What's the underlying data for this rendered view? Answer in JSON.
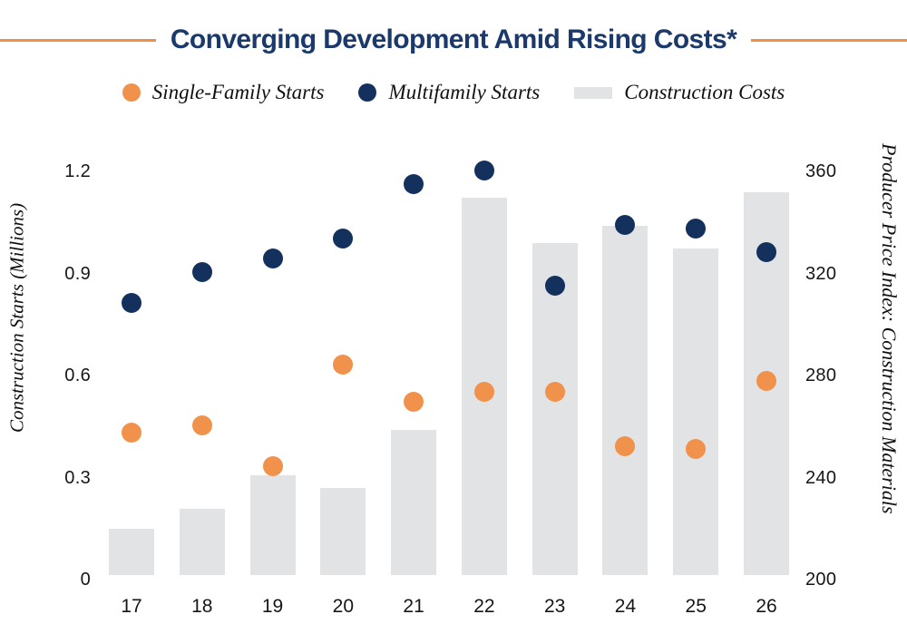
{
  "header": {
    "title": "Converging Development Amid Rising Costs*"
  },
  "legend": {
    "items": [
      {
        "label": "Single-Family Starts",
        "marker": "orange-dot",
        "color": "#F1924C"
      },
      {
        "label": "Multifamily Starts",
        "marker": "navy-dot",
        "color": "#14315E"
      },
      {
        "label": "Construction Costs",
        "marker": "gray-bar",
        "color": "#E1E3E4"
      }
    ]
  },
  "colors": {
    "title_navy": "#1B3A6B",
    "rule_orange": "#EF8F4A",
    "single_family_orange": "#F1924C",
    "multifamily_navy": "#14315E",
    "bar_gray": "#E1E3E4"
  },
  "chart_data": {
    "type": "combo-bar-scatter",
    "title": "Converging Development Amid Rising Costs*",
    "categories": [
      "17",
      "18",
      "19",
      "20",
      "21",
      "22",
      "23",
      "24",
      "25",
      "26"
    ],
    "series": [
      {
        "name": "Single-Family Starts",
        "type": "scatter",
        "axis": "left",
        "color": "#F1924C",
        "values": [
          0.42,
          0.44,
          0.32,
          0.62,
          0.51,
          0.54,
          0.54,
          0.38,
          0.37,
          0.57
        ]
      },
      {
        "name": "Multifamily Starts",
        "type": "scatter",
        "axis": "left",
        "color": "#14315E",
        "values": [
          0.8,
          0.89,
          0.93,
          0.99,
          1.15,
          1.19,
          0.85,
          1.03,
          1.02,
          0.95
        ]
      },
      {
        "name": "Construction Costs",
        "type": "bar",
        "axis": "right",
        "color": "#E1E3E4",
        "values": [
          218,
          226,
          239,
          234,
          257,
          348,
          330,
          337,
          328,
          350
        ]
      }
    ],
    "left_axis": {
      "title": "Construction Starts (Millions)",
      "range": [
        0,
        1.2
      ],
      "ticks": [
        {
          "label": "0",
          "value": 0.0
        },
        {
          "label": "0.3",
          "value": 0.3
        },
        {
          "label": "0.6",
          "value": 0.6
        },
        {
          "label": "0.9",
          "value": 0.9
        },
        {
          "label": "1.2",
          "value": 1.2
        }
      ]
    },
    "right_axis": {
      "title": "Producer Price Index: Construction Materials",
      "range": [
        200,
        360
      ],
      "ticks": [
        {
          "label": "200",
          "value": 200
        },
        {
          "label": "240",
          "value": 240
        },
        {
          "label": "280",
          "value": 280
        },
        {
          "label": "320",
          "value": 320
        },
        {
          "label": "360",
          "value": 360
        }
      ]
    },
    "grid": false,
    "legend_position": "top"
  }
}
